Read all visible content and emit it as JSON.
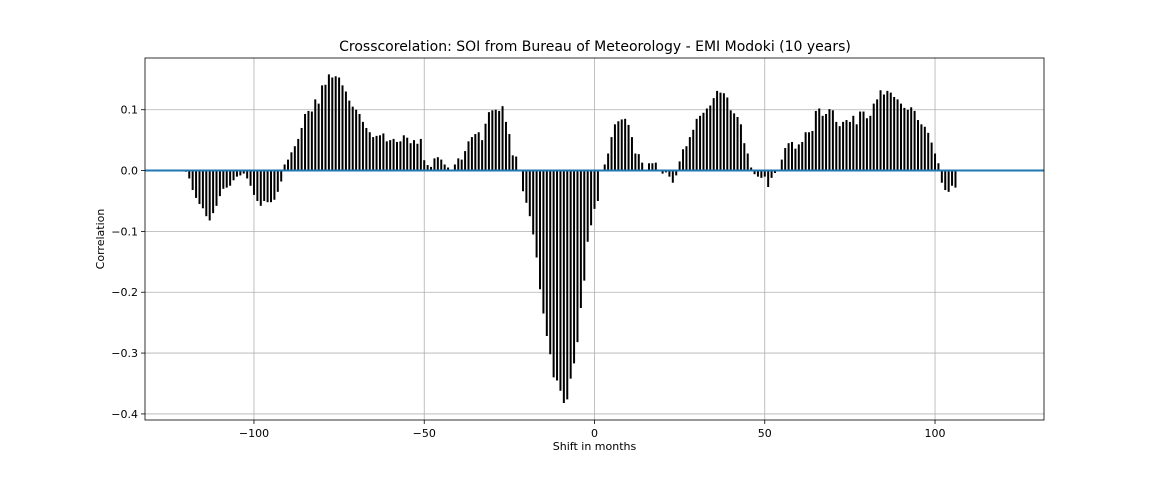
{
  "chart_data": {
    "type": "bar",
    "title": "Crosscorelation: SOI from Bureau of Meteorology - EMI Modoki (10 years)",
    "xlabel": "Shift in months",
    "ylabel": "Correlation",
    "xlim": [
      -132,
      132
    ],
    "ylim": [
      -0.41,
      0.185
    ],
    "xticks": [
      -100,
      -50,
      0,
      50,
      100
    ],
    "xtick_labels": [
      "−100",
      "−50",
      "0",
      "50",
      "100"
    ],
    "yticks": [
      -0.4,
      -0.3,
      -0.2,
      -0.1,
      0.0,
      0.1
    ],
    "ytick_labels": [
      "−0.4",
      "−0.3",
      "−0.2",
      "−0.1",
      "0.0",
      "0.1"
    ],
    "grid": true,
    "baseline": {
      "y": 0,
      "color": "#1f77b4"
    },
    "bar_color": "#000000",
    "x_start": -120,
    "x_step": 1,
    "values": [
      -0.002,
      -0.013,
      -0.032,
      -0.045,
      -0.055,
      -0.062,
      -0.075,
      -0.082,
      -0.07,
      -0.058,
      -0.042,
      -0.03,
      -0.028,
      -0.025,
      -0.016,
      -0.01,
      -0.008,
      -0.005,
      -0.013,
      -0.025,
      -0.04,
      -0.05,
      -0.058,
      -0.05,
      -0.052,
      -0.052,
      -0.048,
      -0.035,
      -0.018,
      0.01,
      0.018,
      0.03,
      0.04,
      0.052,
      0.07,
      0.093,
      0.098,
      0.097,
      0.117,
      0.11,
      0.14,
      0.141,
      0.158,
      0.153,
      0.155,
      0.153,
      0.14,
      0.13,
      0.115,
      0.105,
      0.1,
      0.093,
      0.08,
      0.07,
      0.063,
      0.055,
      0.057,
      0.058,
      0.061,
      0.048,
      0.05,
      0.052,
      0.047,
      0.048,
      0.058,
      0.054,
      0.045,
      0.05,
      0.044,
      0.052,
      0.017,
      0.009,
      0.006,
      0.02,
      0.022,
      0.018,
      0.01,
      0.005,
      0.001,
      0.01,
      0.02,
      0.018,
      0.032,
      0.048,
      0.055,
      0.06,
      0.063,
      0.05,
      0.077,
      0.096,
      0.099,
      0.1,
      0.098,
      0.106,
      0.08,
      0.06,
      0.025,
      0.023,
      0.0,
      -0.034,
      -0.053,
      -0.075,
      -0.105,
      -0.143,
      -0.195,
      -0.235,
      -0.272,
      -0.302,
      -0.34,
      -0.345,
      -0.362,
      -0.382,
      -0.376,
      -0.342,
      -0.317,
      -0.282,
      -0.226,
      -0.181,
      -0.117,
      -0.09,
      -0.063,
      -0.05,
      0.0,
      0.01,
      0.028,
      0.055,
      0.076,
      0.081,
      0.084,
      0.085,
      0.075,
      0.055,
      0.028,
      0.027,
      0.013,
      0.0,
      0.012,
      0.012,
      0.013,
      0.0,
      -0.005,
      -0.003,
      -0.01,
      -0.02,
      -0.008,
      0.015,
      0.035,
      0.04,
      0.055,
      0.067,
      0.085,
      0.09,
      0.095,
      0.102,
      0.107,
      0.119,
      0.131,
      0.128,
      0.127,
      0.12,
      0.099,
      0.094,
      0.088,
      0.076,
      0.045,
      0.028,
      0.005,
      -0.006,
      -0.01,
      -0.012,
      -0.01,
      -0.027,
      -0.012,
      -0.004,
      0.0,
      0.018,
      0.037,
      0.045,
      0.047,
      0.036,
      0.043,
      0.047,
      0.063,
      0.063,
      0.065,
      0.098,
      0.102,
      0.09,
      0.093,
      0.101,
      0.099,
      0.08,
      0.073,
      0.08,
      0.083,
      0.08,
      0.09,
      0.076,
      0.097,
      0.097,
      0.086,
      0.09,
      0.11,
      0.117,
      0.132,
      0.125,
      0.131,
      0.128,
      0.121,
      0.117,
      0.11,
      0.103,
      0.1,
      0.104,
      0.098,
      0.083,
      0.076,
      0.072,
      0.062,
      0.046,
      0.028,
      0.012,
      -0.02,
      -0.032,
      -0.035,
      -0.025,
      -0.028
    ]
  }
}
